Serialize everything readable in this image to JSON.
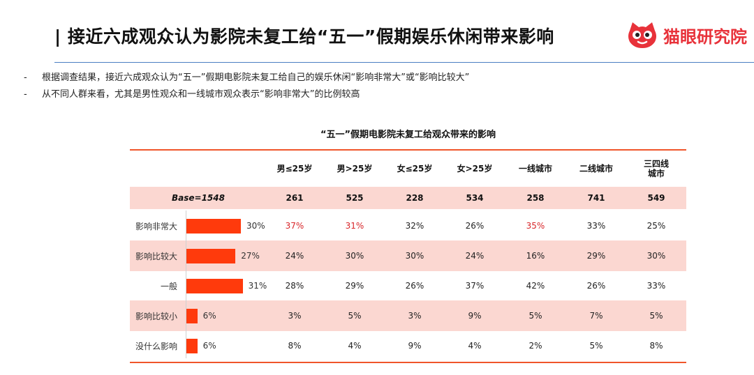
{
  "header": {
    "title": "| 接近六成观众认为影院未复工给“五一”假期娱乐休闲带来影响",
    "logo_text": "猫眼研究院",
    "logo_icon": "cat-face-icon",
    "accent_color": "#e8323a",
    "line_color": "#4a7ec2"
  },
  "bullets": [
    {
      "dash": "-",
      "text": "根据调查结果，接近六成观众认为“五一”假期电影院未复工给自己的娱乐休闲“影响非常大”或“影响比较大”"
    },
    {
      "dash": "-",
      "text": "从不同人群来看，尤其是男性观众和一线城市观众表示“影响非常大”的比例较高"
    }
  ],
  "chart_data": {
    "type": "table",
    "title": "“五一”假期电影院未复工给观众带来的影响",
    "bar_color": "#ff3a0c",
    "highlight_color": "#d8262a",
    "row_shade_color": "#fbd7d1",
    "base_label": "Base=1548",
    "columns": [
      "男≤25岁",
      "男>25岁",
      "女≤25岁",
      "女>25岁",
      "一线城市",
      "二线城市",
      "三四线\n城市"
    ],
    "base_values": [
      "261",
      "525",
      "228",
      "534",
      "258",
      "741",
      "549"
    ],
    "categories": [
      "影响非常大",
      "影响比较大",
      "一般",
      "影响比较小",
      "没什么影响"
    ],
    "total_values": [
      30,
      27,
      31,
      6,
      6
    ],
    "total_labels": [
      "30%",
      "27%",
      "31%",
      "6%",
      "6%"
    ],
    "rows": [
      {
        "label": "影响非常大",
        "values": [
          "37%",
          "31%",
          "32%",
          "26%",
          "35%",
          "33%",
          "25%"
        ],
        "highlight": [
          true,
          true,
          false,
          false,
          true,
          false,
          false
        ]
      },
      {
        "label": "影响比较大",
        "values": [
          "24%",
          "30%",
          "30%",
          "24%",
          "16%",
          "29%",
          "30%"
        ],
        "highlight": [
          false,
          false,
          false,
          false,
          false,
          false,
          false
        ]
      },
      {
        "label": "一般",
        "values": [
          "28%",
          "29%",
          "26%",
          "37%",
          "42%",
          "26%",
          "33%"
        ],
        "highlight": [
          false,
          false,
          false,
          false,
          false,
          false,
          false
        ]
      },
      {
        "label": "影响比较小",
        "values": [
          "3%",
          "5%",
          "3%",
          "9%",
          "5%",
          "7%",
          "5%"
        ],
        "highlight": [
          false,
          false,
          false,
          false,
          false,
          false,
          false
        ]
      },
      {
        "label": "没什么影响",
        "values": [
          "8%",
          "4%",
          "9%",
          "4%",
          "2%",
          "5%",
          "8%"
        ],
        "highlight": [
          false,
          false,
          false,
          false,
          false,
          false,
          false
        ]
      }
    ]
  }
}
